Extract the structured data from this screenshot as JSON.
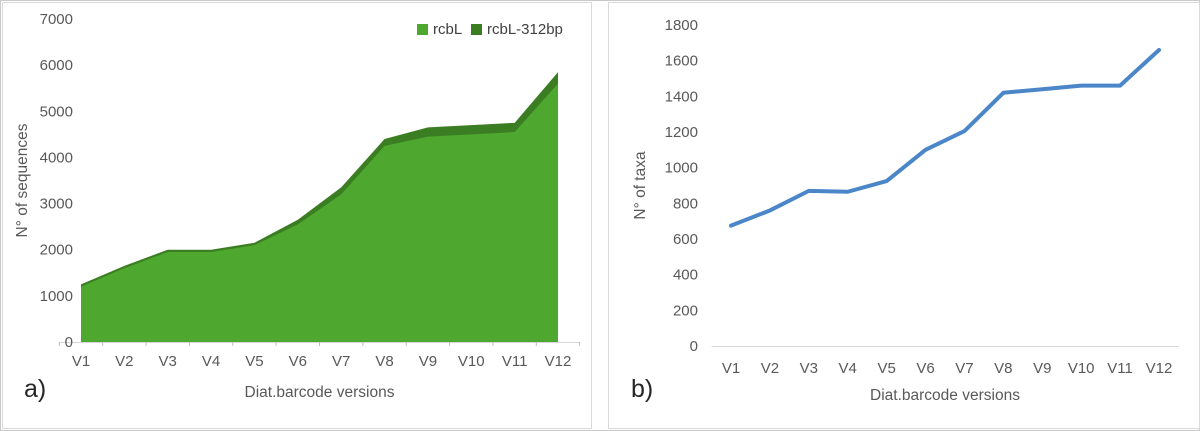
{
  "figure": {
    "panel_a_label": "a)",
    "panel_b_label": "b)"
  },
  "colors": {
    "series_rcbL": "#4EA72E",
    "series_rcbL_312bp": "#3B7D23",
    "series_taxa_line": "#4A86C8",
    "axis_line": "#D6D6D6",
    "tick_mark": "#BFBFBF",
    "tick_text": "#595959",
    "panel_border": "#D9D9D9"
  },
  "chart_data": [
    {
      "type": "area",
      "panel": "a",
      "title": "",
      "categories": [
        "V1",
        "V2",
        "V3",
        "V4",
        "V5",
        "V6",
        "V7",
        "V8",
        "V9",
        "V10",
        "V11",
        "V12"
      ],
      "series": [
        {
          "name": "rcbL",
          "color": "#4EA72E",
          "values": [
            1200,
            1600,
            1950,
            1950,
            2100,
            2550,
            3200,
            4250,
            4450,
            4500,
            4550,
            5600
          ]
        },
        {
          "name": "rcbL-312bp",
          "color": "#3B7D23",
          "values": [
            1250,
            1650,
            2000,
            2000,
            2150,
            2650,
            3350,
            4400,
            4650,
            4700,
            4750,
            5850
          ]
        }
      ],
      "xlabel": "Diat.barcode versions",
      "ylabel": "N° of sequences",
      "ylim": [
        0,
        7000
      ],
      "ytick_step": 1000,
      "grid": false,
      "legend_position": "top-right"
    },
    {
      "type": "line",
      "panel": "b",
      "title": "",
      "categories": [
        "V1",
        "V2",
        "V3",
        "V4",
        "V5",
        "V6",
        "V7",
        "V8",
        "V9",
        "V10",
        "V11",
        "V12"
      ],
      "series": [
        {
          "name": "N° of taxa",
          "color": "#4A86C8",
          "values": [
            675,
            760,
            870,
            865,
            925,
            1100,
            1205,
            1420,
            1440,
            1460,
            1460,
            1660
          ]
        }
      ],
      "xlabel": "Diat.barcode versions",
      "ylabel": "N° of taxa",
      "ylim": [
        0,
        1800
      ],
      "ytick_step": 200,
      "grid": false,
      "legend_position": "none"
    }
  ]
}
